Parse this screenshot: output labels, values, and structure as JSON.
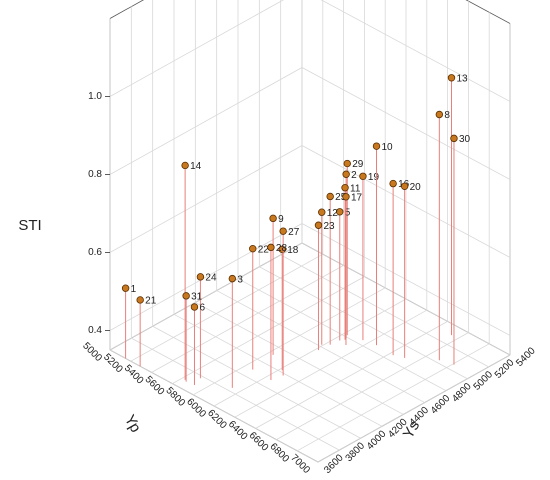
{
  "chart_data": {
    "type": "scatter3d",
    "x_label": "Yp",
    "y_label": "Ys",
    "z_label": "STI",
    "xlim": [
      5000,
      7000
    ],
    "xticks": [
      5000,
      5200,
      5400,
      5600,
      5800,
      6000,
      6200,
      6400,
      6600,
      6800,
      7000
    ],
    "ylim": [
      3600,
      5400
    ],
    "yticks": [
      3600,
      3800,
      4000,
      4200,
      4400,
      4600,
      4800,
      5000,
      5200,
      5400
    ],
    "zlim": [
      0.35,
      1.2
    ],
    "zticks": [
      0.4,
      0.6,
      0.8,
      {
        "value": 1,
        "label": "1.0"
      }
    ],
    "grid": true,
    "color": "#c8781e",
    "stem_color": "#e8807a",
    "labels": [
      "1",
      "2",
      "3",
      "5",
      "6",
      "8",
      "9",
      "10",
      "11",
      "12",
      "13",
      "14",
      "16",
      "17",
      "18",
      "19",
      "20",
      "21",
      "22",
      "23",
      "24",
      "25",
      "27",
      "28",
      "29",
      "30",
      "31"
    ],
    "x": [
      5150,
      6050,
      5930,
      6040,
      5720,
      6700,
      5840,
      6260,
      6060,
      5990,
      6540,
      5630,
      6430,
      6110,
      6020,
      6150,
      6510,
      5290,
      5870,
      6020,
      5690,
      6030,
      6070,
      6050,
      6030,
      6810,
      5650
    ],
    "y": [
      3600,
      4790,
      3840,
      4740,
      3690,
      5030,
      4310,
      4870,
      4770,
      4620,
      5300,
      3690,
      4860,
      4730,
      4220,
      4850,
      4890,
      3600,
      4090,
      4560,
      3775,
      4660,
      4180,
      4085,
      4820,
      5060,
      3680
    ],
    "z": [
      0.53,
      0.77,
      0.63,
      0.68,
      0.55,
      0.98,
      0.7,
      0.86,
      0.74,
      0.69,
      1.01,
      0.9,
      0.79,
      0.73,
      0.66,
      0.77,
      0.79,
      0.52,
      0.66,
      0.67,
      0.61,
      0.73,
      0.72,
      0.69,
      0.79,
      0.93,
      0.57
    ]
  }
}
